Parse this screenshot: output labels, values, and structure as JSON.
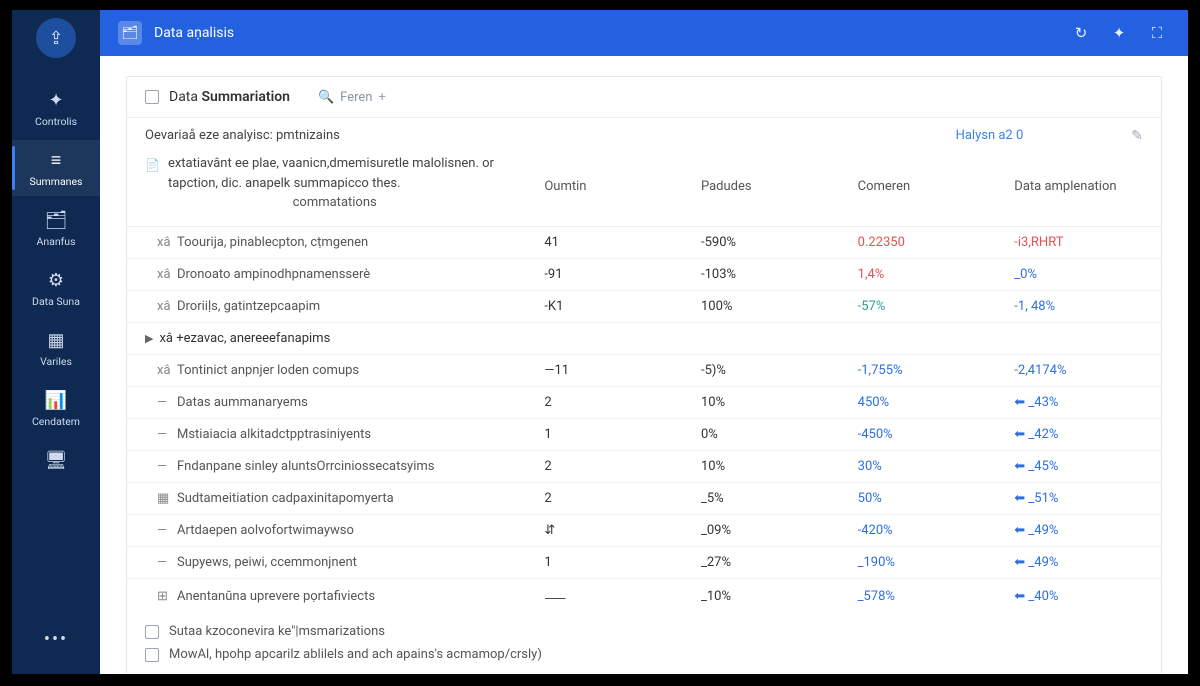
{
  "colors": {
    "sidebar_bg": "#0f2a52",
    "header_bg": "#2461e0",
    "accent_blue": "#2d6fe0",
    "accent_red": "#e45252",
    "accent_teal": "#2a9f8f",
    "border": "#e3e7ee"
  },
  "header": {
    "title": "Data aṇalisis",
    "refresh_icon": "↻",
    "share_icon": "✦",
    "expand_icon": "⛶"
  },
  "sidebar": {
    "logo_glyph": "⇪",
    "items": [
      {
        "icon": "✦",
        "label": "Controlis"
      },
      {
        "icon": "≡",
        "label": "Summanes",
        "active": true
      },
      {
        "icon": "🗂",
        "label": "Ananfus"
      },
      {
        "icon": "⚙",
        "label": "Data Suna"
      },
      {
        "icon": "▦",
        "label": "Variles"
      },
      {
        "icon": "📊",
        "label": "Cendatem"
      },
      {
        "icon": "🖥",
        "label": ""
      }
    ],
    "more": "•••"
  },
  "panel": {
    "title_prefix": "Data ",
    "title_strong": "Summariation",
    "search_placeholder": "Feren",
    "subtitle": "Oevariaå eze analyisc: pmtnizains",
    "halysn": "Halysn a2 0",
    "header_desc": "extatiavânt ee plae, vaanicn,dmemisuretle malolisnen. or tapction, dic. anapelk summapicco thes.",
    "commtations": "commatations",
    "columns": [
      "Oumtin",
      "Padudes",
      "Comeren",
      "Data amplenation"
    ],
    "rows": [
      {
        "mark": "xâ",
        "label": "Toourija, pinablecpton, cṭmgenen",
        "outin": "41",
        "padudes": "-590%",
        "comeren": "0.22350",
        "comeren_cls": "c-red",
        "amp": "-i3,RHRT",
        "amp_cls": "c-red"
      },
      {
        "mark": "xâ",
        "label": "Dronoato ampinodhpnamensserè",
        "outin": "-91",
        "padudes": "-103%",
        "comeren": "1,4%",
        "comeren_cls": "c-red",
        "amp": "_0%",
        "amp_cls": "c-blue"
      },
      {
        "mark": "xâ",
        "label": "Droriiḷs, gatintzepcaapim",
        "outin": "-K1",
        "padudes": "100%",
        "comeren": "-57%",
        "comeren_cls": "c-teal",
        "amp": "-1, 48%",
        "amp_cls": "c-blue"
      },
      {
        "group": true,
        "mark": "▶",
        "label": "xâ +ezavac, anereeefanapims"
      },
      {
        "mark": "xâ",
        "label": "Tontinict anpnjer loden comups",
        "outin": "—11",
        "padudes": "-5)%",
        "comeren": "-1,755%",
        "comeren_cls": "c-blue",
        "amp": "-2,4174%",
        "amp_cls": "c-blue"
      },
      {
        "mark": "—",
        "label": "Datas aummanaryems",
        "outin": "2",
        "padudes": "10%",
        "comeren": "450%",
        "comeren_cls": "c-blue",
        "amp": "⬅ _43%",
        "amp_cls": "c-blue"
      },
      {
        "mark": "—",
        "label": "Mstiaiacia alkitadctpptrasiniyents",
        "outin": "1",
        "padudes": "0%",
        "comeren": "-450%",
        "comeren_cls": "c-blue",
        "amp": "⬅ _42%",
        "amp_cls": "c-blue"
      },
      {
        "mark": "—",
        "label": "Fndanpane sinley aluntsOrrciniossecatsyims",
        "outin": "2",
        "padudes": "10%",
        "comeren": "30%",
        "comeren_cls": "c-blue",
        "amp": "⬅ _45%",
        "amp_cls": "c-blue"
      },
      {
        "mark": "▦",
        "label": "Sudtameitiation cadpaxinitapomyerta",
        "outin": "2",
        "padudes": "_5%",
        "comeren": "50%",
        "comeren_cls": "c-blue",
        "amp": "⬅ _51%",
        "amp_cls": "c-blue"
      },
      {
        "mark": "—",
        "label": "Artdaepen aolvofortwimaywso",
        "outin": "⇵",
        "padudes": "_09%",
        "comeren": "-420%",
        "comeren_cls": "c-blue",
        "amp": "⬅ _49%",
        "amp_cls": "c-blue"
      },
      {
        "mark": "—",
        "label": "Supyews, peiwi, ccemmonjnent",
        "outin": "1",
        "padudes": "_27%",
        "comeren": "_190%",
        "comeren_cls": "c-blue",
        "amp": "⬅ _49%",
        "amp_cls": "c-blue"
      },
      {
        "mark": "⊞",
        "label": "Anentanŭna uprevere pọrtafiviects",
        "outin": "⸺",
        "padudes": "_10%",
        "comeren": "_578%",
        "comeren_cls": "c-blue",
        "amp": "⬅ _40%",
        "amp_cls": "c-blue"
      }
    ],
    "footer_checks": [
      "Sutaa kzoconevira ke\"|msmarizations",
      "MowAl, hpohp apcarilz ablilels and ach apains's acmamop/crsly)"
    ]
  }
}
